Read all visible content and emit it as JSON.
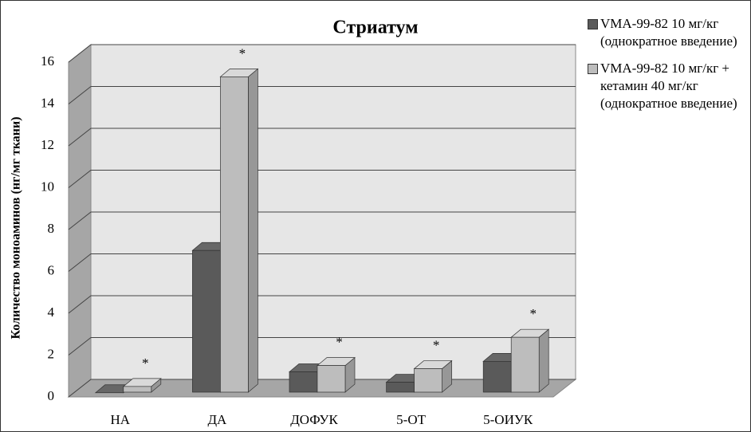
{
  "chart_data": {
    "type": "bar3d",
    "title": "Стриатум",
    "y_label": "Количество моноаминов (нг/мг ткани)",
    "categories": [
      "НА",
      "ДА",
      "ДОФУК",
      "5-ОТ",
      "5-ОИУК"
    ],
    "series": [
      {
        "name": "VMA-99-82 10 мг/кг (однократное введение)",
        "color": "#5a5a5a",
        "values": [
          0.2,
          7.0,
          1.2,
          0.7,
          1.7
        ]
      },
      {
        "name": "VMA-99-82 10 мг/кг + кетамин 40 мг/кг (однократное введение)",
        "color": "#bdbdbd",
        "values": [
          0.5,
          15.3,
          1.5,
          1.35,
          2.85
        ],
        "labels": [
          "*",
          "*",
          "*",
          "*",
          "*"
        ]
      }
    ],
    "ylim": [
      0,
      16
    ],
    "yticks": [
      0,
      2,
      4,
      6,
      8,
      10,
      12,
      14,
      16
    ],
    "grid": true
  }
}
